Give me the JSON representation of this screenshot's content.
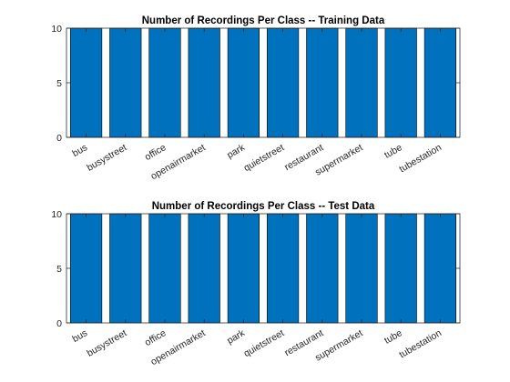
{
  "chart_data": [
    {
      "type": "bar",
      "title": "Number of Recordings Per Class -- Training Data",
      "xlabel": "",
      "ylabel": "",
      "categories": [
        "bus",
        "busystreet",
        "office",
        "openairmarket",
        "park",
        "quietstreet",
        "restaurant",
        "supermarket",
        "tube",
        "tubestation"
      ],
      "values": [
        10,
        10,
        10,
        10,
        10,
        10,
        10,
        10,
        10,
        10
      ],
      "ylim": [
        0,
        10
      ],
      "yticks": [
        0,
        5,
        10
      ],
      "bar_color": "#0072BD",
      "grid": false
    },
    {
      "type": "bar",
      "title": "Number of Recordings Per Class -- Test Data",
      "xlabel": "",
      "ylabel": "",
      "categories": [
        "bus",
        "busystreet",
        "office",
        "openairmarket",
        "park",
        "quietstreet",
        "restaurant",
        "supermarket",
        "tube",
        "tubestation"
      ],
      "values": [
        10,
        10,
        10,
        10,
        10,
        10,
        10,
        10,
        10,
        10
      ],
      "ylim": [
        0,
        10
      ],
      "yticks": [
        0,
        5,
        10
      ],
      "bar_color": "#0072BD",
      "grid": false
    }
  ]
}
